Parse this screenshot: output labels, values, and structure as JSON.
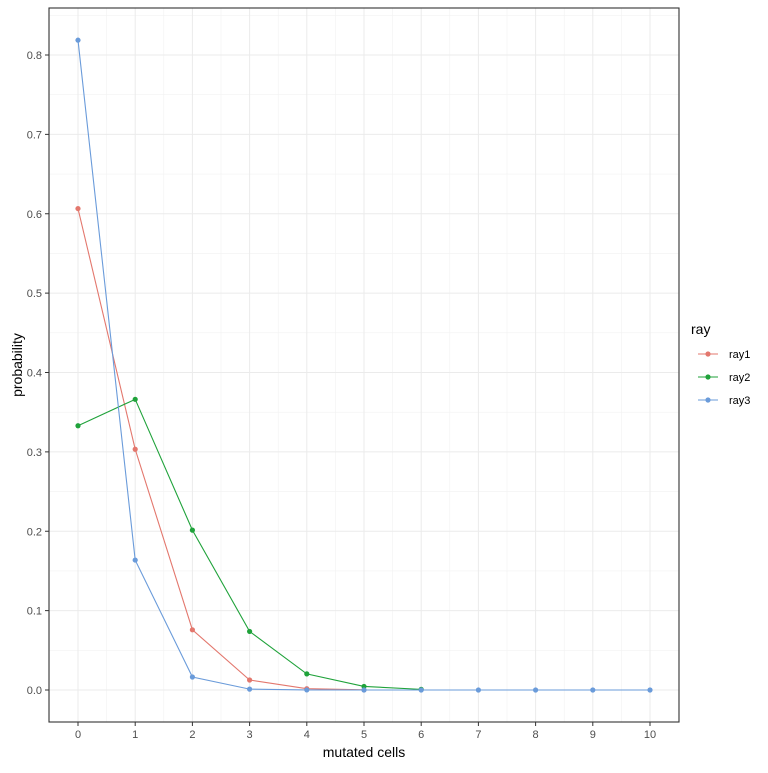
{
  "chart_data": {
    "type": "line",
    "title": "",
    "xlabel": "mutated cells",
    "ylabel": "probability",
    "xlim": [
      -0.5,
      10.5
    ],
    "ylim": [
      -0.04,
      0.86
    ],
    "x_ticks": [
      0,
      1,
      2,
      3,
      4,
      5,
      6,
      7,
      8,
      9,
      10
    ],
    "y_ticks": [
      0.0,
      0.1,
      0.2,
      0.3,
      0.4,
      0.5,
      0.6,
      0.7,
      0.8
    ],
    "y_tick_labels": [
      "0.0",
      "0.1",
      "0.2",
      "0.3",
      "0.4",
      "0.5",
      "0.6",
      "0.7",
      "0.8"
    ],
    "grid": true,
    "legend": {
      "title": "ray",
      "placement": "right"
    },
    "series": [
      {
        "name": "ray1",
        "color": "#E3776D",
        "x": [
          0,
          1,
          2,
          3,
          4,
          5
        ],
        "y": [
          0.6065,
          0.3033,
          0.0758,
          0.0126,
          0.0016,
          0.0002
        ]
      },
      {
        "name": "ray2",
        "color": "#1FA23A",
        "x": [
          0,
          1,
          2,
          3,
          4,
          5,
          6
        ],
        "y": [
          0.3329,
          0.3662,
          0.2014,
          0.0738,
          0.0203,
          0.0045,
          0.0008
        ]
      },
      {
        "name": "ray3",
        "color": "#6A9BDA",
        "x": [
          0,
          1,
          2,
          3,
          4,
          5,
          6,
          7,
          8,
          9,
          10
        ],
        "y": [
          0.8187,
          0.1637,
          0.0164,
          0.0011,
          0.0001,
          0.0,
          0.0,
          0.0,
          0.0,
          0.0,
          0.0
        ]
      }
    ]
  }
}
